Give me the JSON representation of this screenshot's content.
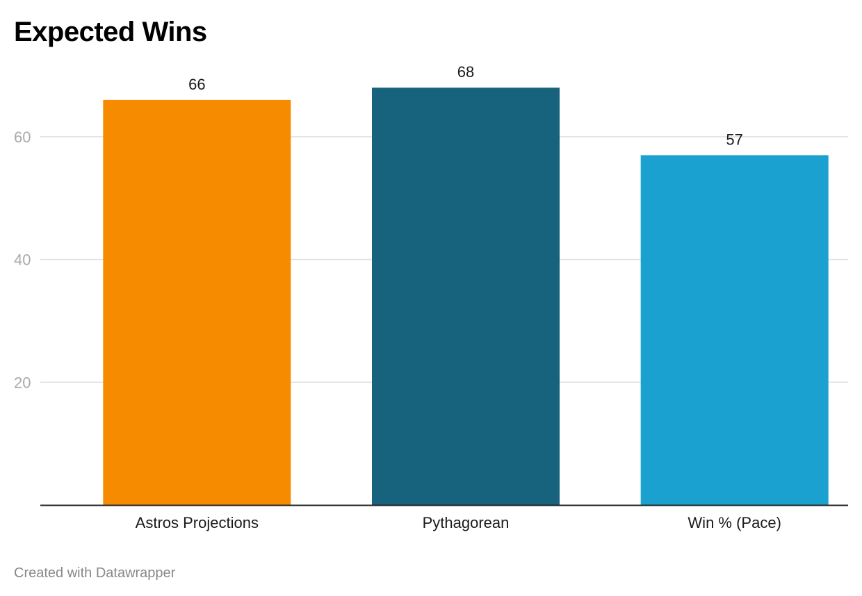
{
  "colors": {
    "grid": "#e0e0e0",
    "baseline": "#222222",
    "tick_text": "#aaaaaa",
    "label_text": "#1a1a1a"
  },
  "chart_data": {
    "type": "bar",
    "title": "Expected Wins",
    "categories": [
      "Astros Projections",
      "Pythagorean",
      "Win % (Pace)"
    ],
    "values": [
      66,
      68,
      57
    ],
    "value_labels": [
      "66",
      "68",
      "57"
    ],
    "bar_colors": [
      "#f78b00",
      "#17627c",
      "#1aa1cf"
    ],
    "yticks": [
      20,
      40,
      60
    ],
    "ytick_labels": [
      "20",
      "40",
      "60"
    ],
    "ylim": [
      0,
      68
    ],
    "xlabel": "",
    "ylabel": "",
    "grid": true
  },
  "footer": {
    "credit": "Created with Datawrapper"
  }
}
